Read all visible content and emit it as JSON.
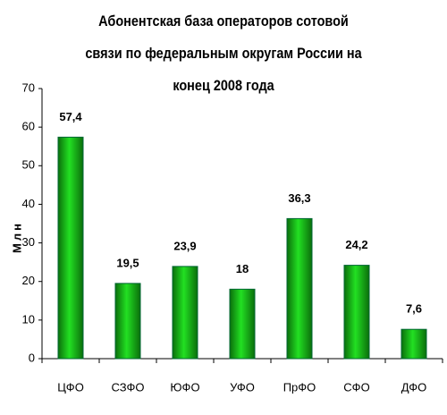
{
  "chart_data": {
    "type": "bar",
    "title": "Абонентская база операторов сотовой связи по федеральным округам России на конец 2008 года",
    "y_label": "Млн",
    "categories": [
      "ЦФО",
      "СЗФО",
      "ЮФО",
      "УФО",
      "ПрФО",
      "СФО",
      "ДФО"
    ],
    "values": [
      57.4,
      19.5,
      23.9,
      18,
      36.3,
      24.2,
      7.6
    ],
    "value_labels": [
      "57,4",
      "19,5",
      "23,9",
      "18",
      "36,3",
      "24,2",
      "7,6"
    ],
    "color": "#22e022",
    "ylim": [
      0,
      70
    ],
    "yticks": [
      0,
      10,
      20,
      30,
      40,
      50,
      60,
      70
    ],
    "grid": false
  }
}
